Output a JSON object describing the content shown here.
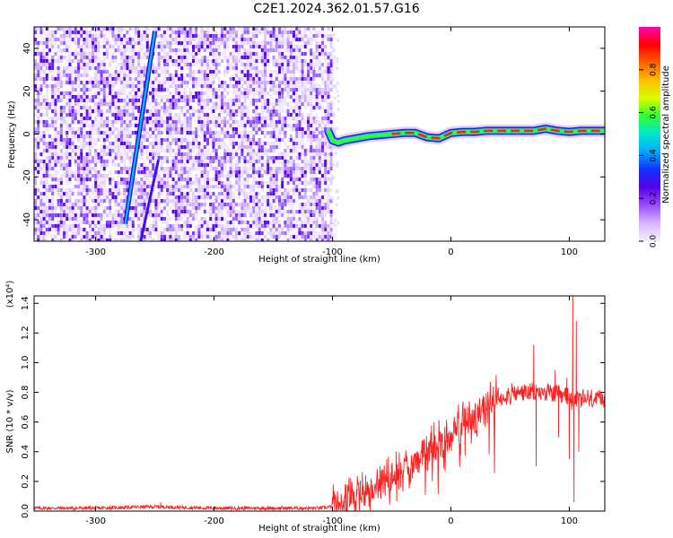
{
  "title": "C2E1.2024.362.01.57.G16",
  "chart_data": [
    {
      "type": "heatmap",
      "xlabel": "Height of straight line (km)",
      "ylabel": "Frequency (Hz)",
      "xlim": [
        -352,
        130
      ],
      "ylim": [
        -50,
        50
      ],
      "x_ticks": [
        -300,
        -200,
        -100,
        0,
        100
      ],
      "y_ticks": [
        -40,
        -20,
        0,
        20,
        40
      ],
      "colorbar": {
        "label": "Normalized spectral amplitude",
        "ticks": [
          "0.0",
          "0.2",
          "0.4",
          "0.6",
          "0.8"
        ],
        "range": [
          0,
          1
        ],
        "colors": [
          "#f4eeff",
          "#d9b8ff",
          "#9a4dff",
          "#5a00e6",
          "#1030ff",
          "#00a8ff",
          "#00e6d0",
          "#30ff30",
          "#d8ff00",
          "#ffc000",
          "#ff6000",
          "#ff0000",
          "#ff00b0"
        ]
      },
      "features": {
        "noise_region_x": [
          -352,
          -102
        ],
        "sweep_line_1": {
          "x": [
            -275,
            -250
          ],
          "y": [
            -42,
            48
          ]
        },
        "sweep_line_2": {
          "x": [
            -262,
            -247
          ],
          "y": [
            -50,
            -12
          ]
        },
        "signal_trace": {
          "x": [
            -104,
            -100,
            -95,
            -90,
            -80,
            -70,
            -60,
            -50,
            -40,
            -30,
            -20,
            -10,
            0,
            10,
            20,
            30,
            40,
            50,
            60,
            70,
            80,
            90,
            100,
            110,
            120,
            130
          ],
          "y": [
            2,
            -3,
            -4,
            -3,
            -2,
            -1,
            -0.5,
            0,
            0.5,
            0.5,
            -1.5,
            -2,
            0.5,
            1,
            1,
            1.5,
            1.5,
            1.5,
            1.5,
            1.5,
            2.5,
            1.5,
            1,
            1.5,
            1.5,
            1.5
          ]
        }
      }
    },
    {
      "type": "line",
      "xlabel": "Height of straight line (km)",
      "ylabel": "SNR (10 * v/v)",
      "y_multiplier": "(x10⁴)",
      "xlim": [
        -352,
        130
      ],
      "ylim": [
        0,
        1.45
      ],
      "x_ticks": [
        -300,
        -200,
        -100,
        0,
        100
      ],
      "y_ticks": [
        "0.0",
        "0.2",
        "0.4",
        "0.6",
        "0.8",
        "1.0",
        "1.2",
        "1.4"
      ],
      "series_color": "#ff2020",
      "trend": {
        "x": [
          -352,
          -300,
          -250,
          -200,
          -150,
          -110,
          -100,
          -90,
          -80,
          -70,
          -60,
          -50,
          -40,
          -30,
          -20,
          -10,
          0,
          10,
          20,
          30,
          40,
          50,
          60,
          70,
          80,
          90,
          100,
          110,
          120,
          130
        ],
        "y": [
          0.02,
          0.02,
          0.03,
          0.02,
          0.02,
          0.02,
          0.03,
          0.06,
          0.1,
          0.15,
          0.2,
          0.25,
          0.3,
          0.36,
          0.42,
          0.47,
          0.53,
          0.6,
          0.66,
          0.72,
          0.76,
          0.79,
          0.8,
          0.8,
          0.8,
          0.78,
          0.76,
          0.75,
          0.75,
          0.75
        ]
      },
      "spikes": [
        {
          "x": 70,
          "y": 1.12
        },
        {
          "x": 72,
          "y": 0.3
        },
        {
          "x": 88,
          "y": 0.95
        },
        {
          "x": 91,
          "y": 0.5
        },
        {
          "x": 98,
          "y": 0.9
        },
        {
          "x": 100,
          "y": 0.35
        },
        {
          "x": 103,
          "y": 1.48
        },
        {
          "x": 104,
          "y": 0.06
        },
        {
          "x": 106,
          "y": 1.28
        },
        {
          "x": 108,
          "y": 0.4
        },
        {
          "x": -245,
          "y": 0.06
        }
      ]
    }
  ]
}
